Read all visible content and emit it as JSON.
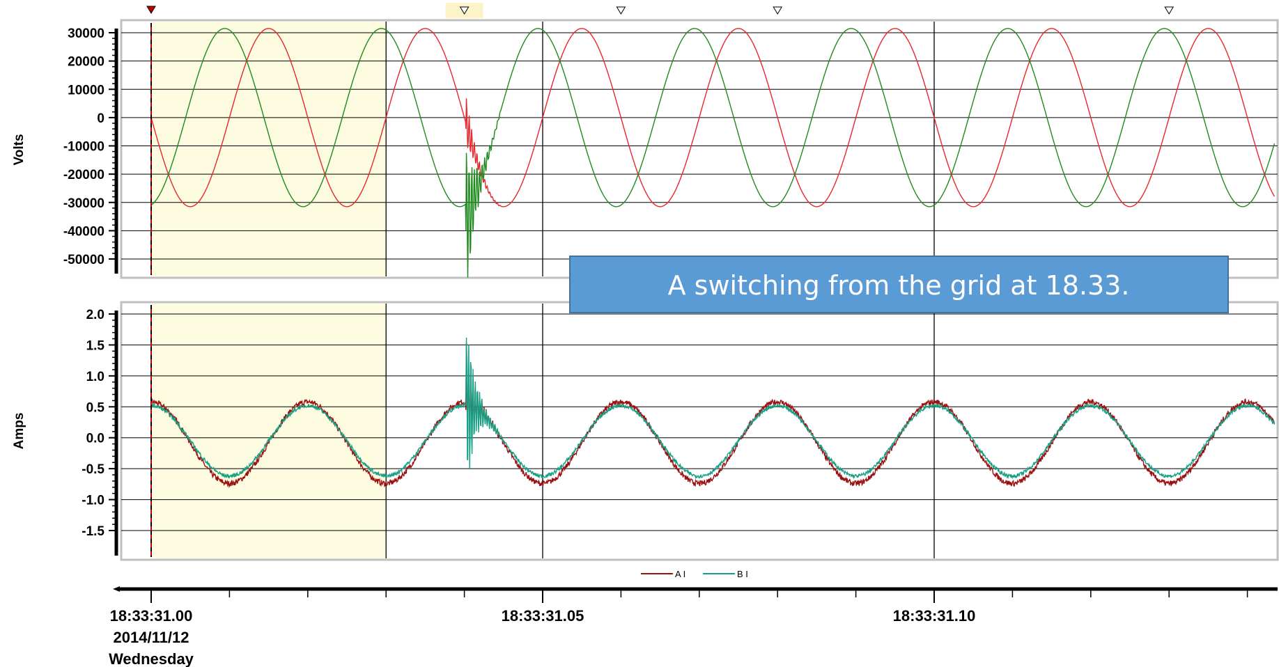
{
  "chart_data": [
    {
      "type": "line",
      "ylabel": "Volts",
      "ylim": [
        -56000,
        35000
      ],
      "yticks": [
        "30000",
        "20000",
        "10000",
        "0",
        "-10000",
        "-20000",
        "-30000",
        "-40000",
        "-50000"
      ],
      "ytick_values": [
        30000,
        20000,
        10000,
        0,
        -10000,
        -20000,
        -30000,
        -40000,
        -50000
      ],
      "grid": true,
      "series": [
        {
          "key": "v_red",
          "color": "#e8262b",
          "amplitude": 31500,
          "phase_shift_ms": 0,
          "form": "-sin"
        },
        {
          "key": "v_green",
          "color": "#1e8a1e",
          "amplitude": 31500,
          "phase_shift_ms": 5.6,
          "form": "-sin"
        }
      ],
      "frequency_hz": 50,
      "disturbance_ms": 40.2
    },
    {
      "type": "line",
      "ylabel": "Amps",
      "ylim": [
        -1.9,
        2.15
      ],
      "yticks": [
        "2.0",
        "1.5",
        "1.0",
        "0.5",
        "0.0",
        "-0.5",
        "-1.0",
        "-1.5"
      ],
      "ytick_values": [
        2.0,
        1.5,
        1.0,
        0.5,
        0.0,
        -0.5,
        -1.0,
        -1.5
      ],
      "grid": true,
      "series": [
        {
          "name": "A I",
          "color": "#9b1010",
          "amplitude": 0.66,
          "form": "cos"
        },
        {
          "name": "B I",
          "color": "#16a085",
          "amplitude": 0.57,
          "form": "cos"
        }
      ],
      "frequency_hz": 50,
      "disturbance_ms": 40.2
    }
  ],
  "time_axis": {
    "range_ms": [
      0,
      143.5
    ],
    "gridline_ms": [
      30,
      50,
      100
    ],
    "major_tick_ms": [
      0,
      50,
      100
    ],
    "minor_tick_ms": [
      0,
      10,
      20,
      30,
      40,
      50,
      60,
      70,
      80,
      90,
      100,
      110,
      120,
      130,
      140
    ],
    "highlight_ms": [
      0,
      30
    ],
    "markers_ms": [
      40,
      60,
      80,
      130
    ],
    "cursor_ms": 0,
    "labels": [
      {
        "ms": 0,
        "lines": [
          "18:33:31.00",
          "2014/11/12",
          "Wednesday"
        ]
      },
      {
        "ms": 50,
        "lines": [
          "18:33:31.05"
        ]
      },
      {
        "ms": 100,
        "lines": [
          "18:33:31.10"
        ]
      }
    ]
  },
  "annotation": {
    "text": "A switching from the grid at 18.33.",
    "fill": "#5b9bd5",
    "stroke": "#41719c"
  },
  "colors": {
    "highlight": "#fdfbe0",
    "marker_highlight": "#fcf3c8",
    "cursor": "#c00000",
    "frame": "#c0c0c0"
  }
}
